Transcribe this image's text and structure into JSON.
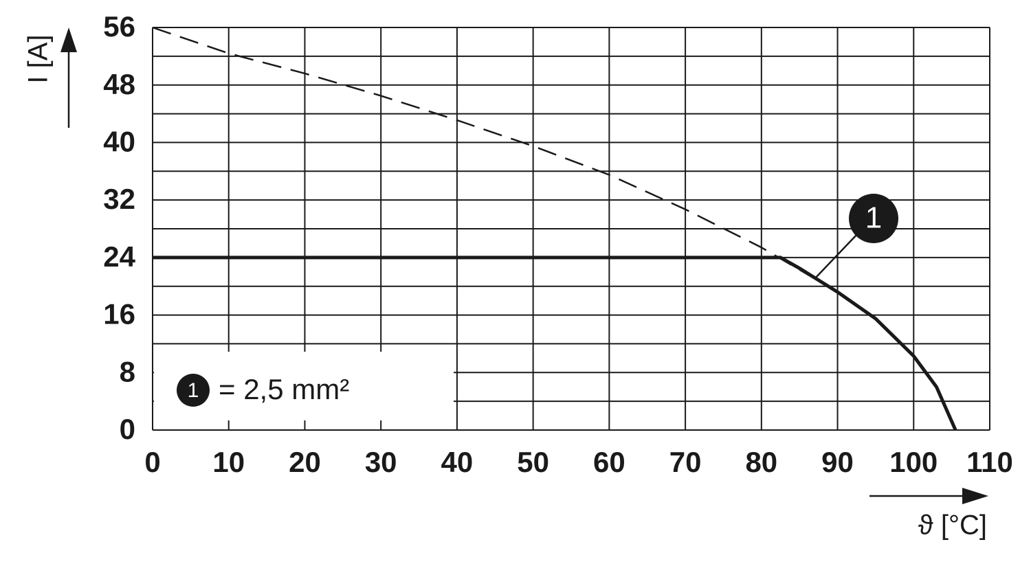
{
  "chart_data": {
    "type": "line",
    "ylabel": "I [A]",
    "xlabel": "ϑ [°C]",
    "xlim": [
      0,
      110
    ],
    "xticks": [
      0,
      10,
      20,
      30,
      40,
      50,
      60,
      70,
      80,
      90,
      100,
      110
    ],
    "ylim": [
      0,
      56
    ],
    "yticks": [
      0,
      8,
      16,
      24,
      32,
      40,
      48,
      56
    ],
    "grid": true,
    "series": [
      {
        "style": "dashed",
        "color": "#1a1a1a",
        "x": [
          0,
          10,
          20,
          30,
          40,
          50,
          60,
          70,
          80,
          90
        ],
        "values": [
          56,
          52.4,
          49.6,
          46.5,
          43.1,
          39.5,
          35.5,
          30.7,
          25.4,
          19.2
        ]
      },
      {
        "style": "solid",
        "color": "#1a1a1a",
        "x": [
          0,
          82.5,
          85,
          90,
          95,
          100,
          103,
          105.5
        ],
        "values": [
          24,
          24,
          22.5,
          19.2,
          15.5,
          10.3,
          6,
          0
        ]
      }
    ],
    "annotation": {
      "text": "1"
    },
    "legend": {
      "marker": "1",
      "label": "= 2,5 mm²"
    }
  }
}
